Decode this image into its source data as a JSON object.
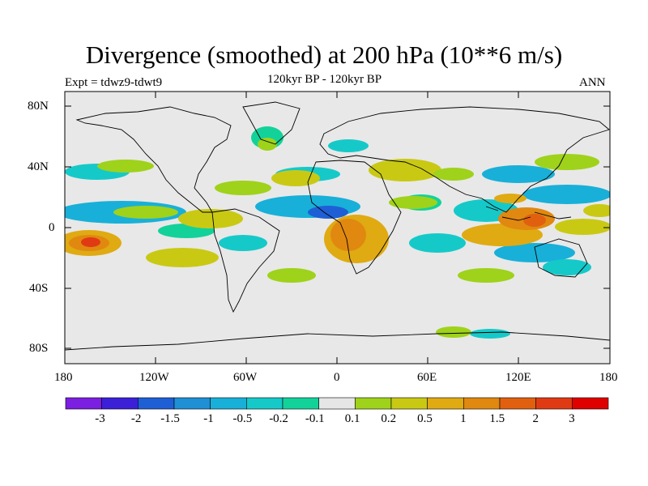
{
  "title": "Divergence (smoothed) at 200 hPa (10**6 m/s)",
  "left_label": "Expt = tdwz9-tdwt9",
  "center_label": "120kyr BP - 120kyr BP",
  "right_label": "ANN",
  "map": {
    "projection": "cylindrical-equidistant",
    "lon_range": [
      -180,
      180
    ],
    "lat_range": [
      -90,
      90
    ],
    "background_color": "#e8e8e8",
    "coastline_color": "#000000",
    "lat_ticks": [
      "80N",
      "40N",
      "0",
      "40S",
      "80S"
    ],
    "lon_ticks": [
      "180",
      "120W",
      "60W",
      "0",
      "60E",
      "120E",
      "180"
    ]
  },
  "colorbar": {
    "labels": [
      "-3",
      "-2",
      "-1.5",
      "-1",
      "-0.5",
      "-0.2",
      "-0.1",
      "0.1",
      "0.2",
      "0.5",
      "1",
      "1.5",
      "2",
      "3"
    ],
    "colors": [
      "#7b1fe0",
      "#3b20d8",
      "#1f5fd6",
      "#1f8fd6",
      "#18b0d8",
      "#16c9c9",
      "#12d29a",
      "#e6e6e6",
      "#9fd21a",
      "#c9c914",
      "#e0aa12",
      "#e08810",
      "#e06010",
      "#e03a14",
      "#e00000"
    ]
  }
}
